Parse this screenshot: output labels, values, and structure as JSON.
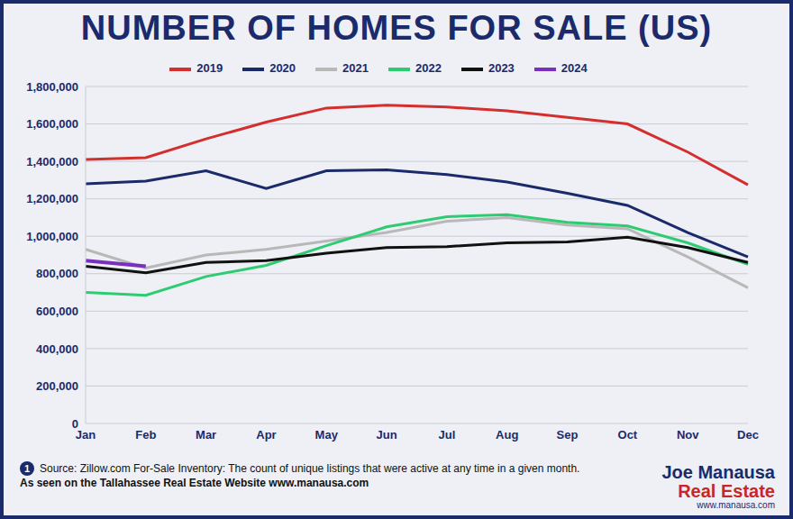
{
  "chart_data": {
    "type": "line",
    "title": "NUMBER OF HOMES FOR SALE (US)",
    "categories": [
      "Jan",
      "Feb",
      "Mar",
      "Apr",
      "May",
      "Jun",
      "Jul",
      "Aug",
      "Sep",
      "Oct",
      "Nov",
      "Dec"
    ],
    "series": [
      {
        "name": "2019",
        "color": "#d32f2f",
        "values": [
          1410000,
          1420000,
          1520000,
          1610000,
          1685000,
          1700000,
          1690000,
          1670000,
          1635000,
          1600000,
          1450000,
          1275000
        ]
      },
      {
        "name": "2020",
        "color": "#1b2a6b",
        "values": [
          1280000,
          1295000,
          1350000,
          1255000,
          1350000,
          1355000,
          1330000,
          1290000,
          1230000,
          1165000,
          1020000,
          890000
        ]
      },
      {
        "name": "2021",
        "color": "#b8b8b8",
        "values": [
          930000,
          830000,
          900000,
          930000,
          975000,
          1020000,
          1080000,
          1100000,
          1060000,
          1040000,
          890000,
          725000
        ]
      },
      {
        "name": "2022",
        "color": "#2ecc71",
        "values": [
          700000,
          685000,
          785000,
          845000,
          950000,
          1050000,
          1105000,
          1115000,
          1075000,
          1055000,
          965000,
          850000
        ]
      },
      {
        "name": "2023",
        "color": "#111111",
        "values": [
          840000,
          805000,
          860000,
          870000,
          910000,
          940000,
          945000,
          965000,
          970000,
          995000,
          940000,
          860000
        ]
      },
      {
        "name": "2024",
        "color": "#7b2fbe",
        "values": [
          870000,
          840000,
          null,
          null,
          null,
          null,
          null,
          null,
          null,
          null,
          null,
          null
        ]
      }
    ],
    "ylim": [
      0,
      1800000
    ],
    "yticks": [
      0,
      {
        "value": 200000,
        "label": "200,000"
      },
      {
        "value": 400000,
        "label": "400,000"
      },
      {
        "value": 600000,
        "label": "600,000"
      },
      {
        "value": 800000,
        "label": "800,000"
      },
      {
        "value": 1000000,
        "label": "1,000,000"
      },
      {
        "value": 1200000,
        "label": "1,200,000"
      },
      {
        "value": 1400000,
        "label": "1,400,000"
      },
      {
        "value": 1600000,
        "label": "1,600,000"
      },
      {
        "value": 1800000,
        "label": "1,800,000"
      }
    ],
    "grid": true,
    "legend": "top",
    "annotations": {
      "marker": "1",
      "source": "Source: Zillow.com For-Sale Inventory: The count of unique listings that were active at any time in a given month.",
      "credit": "As seen on the Tallahassee Real Estate Website www.manausa.com",
      "logo_name": "Joe Manausa",
      "logo_tagline": "Real Estate",
      "logo_url": "www.manausa.com"
    }
  }
}
